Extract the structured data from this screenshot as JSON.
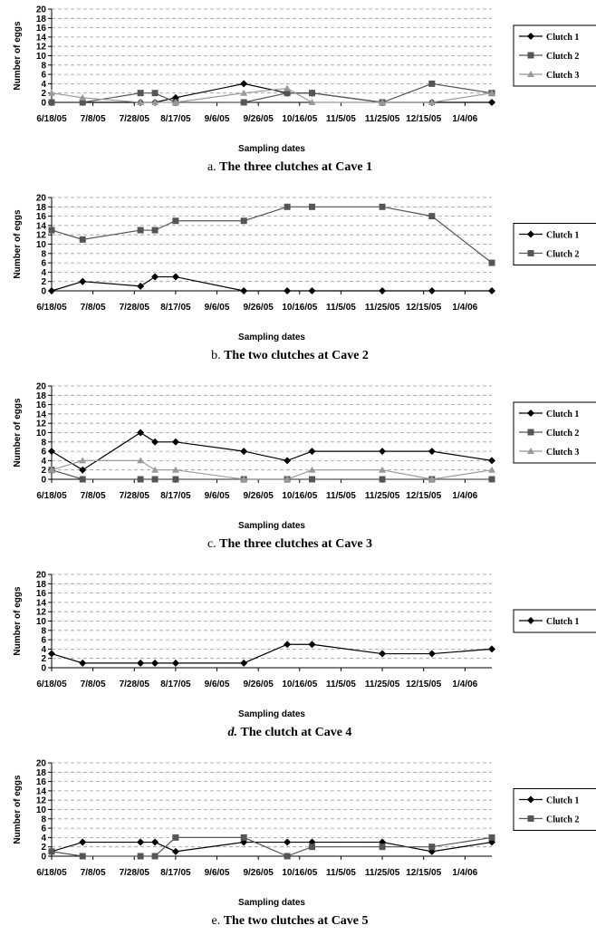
{
  "colors": {
    "Clutch 1": "#000000",
    "Clutch 2": "#555555",
    "Clutch 3": "#999999",
    "grid": "#9a9a9a",
    "axis": "#000000",
    "legend_border": "#000000"
  },
  "chart_data": [
    {
      "type": "line",
      "caption_prefix": "a. ",
      "caption": "The three clutches at Cave 1",
      "caption_italic_prefix": false,
      "xlabel": "Sampling dates",
      "ylabel": "Number of eggs",
      "ylim": [
        0,
        20
      ],
      "yticks": [
        "0",
        "2",
        "4",
        "6",
        "8",
        "10",
        "12",
        "14",
        "16",
        "18",
        "20"
      ],
      "xticks": [
        "6/18/05",
        "7/8/05",
        "7/28/05",
        "8/17/05",
        "9/6/05",
        "9/26/05",
        "10/16/05",
        "11/5/05",
        "11/25/05",
        "12/15/05",
        "1/4/06"
      ],
      "grid": "horizontal dashed",
      "legend_placement": "right",
      "x": [
        "6/18/05",
        "7/3/05",
        "7/31/05",
        "8/7/05",
        "8/17/05",
        "9/19/05",
        "10/10/05",
        "10/22/05",
        "11/25/05",
        "12/19/05",
        "1/17/06"
      ],
      "series": [
        {
          "name": "Clutch 1",
          "marker": "diamond",
          "values": [
            0,
            0,
            0,
            0,
            1,
            4,
            2,
            2,
            0,
            0,
            0
          ]
        },
        {
          "name": "Clutch 2",
          "marker": "square",
          "values": [
            0,
            0,
            2,
            2,
            0,
            0,
            2,
            2,
            0,
            4,
            2
          ]
        },
        {
          "name": "Clutch 3",
          "marker": "triangle",
          "values": [
            2,
            1,
            0,
            0,
            0,
            2,
            3,
            0,
            0,
            0,
            2
          ]
        }
      ]
    },
    {
      "type": "line",
      "caption_prefix": "b. ",
      "caption": "The two clutches at Cave 2",
      "caption_italic_prefix": false,
      "xlabel": "Sampling dates",
      "ylabel": "Number of eggs",
      "ylim": [
        0,
        20
      ],
      "yticks": [
        "0",
        "2",
        "4",
        "6",
        "8",
        "10",
        "12",
        "14",
        "16",
        "18",
        "20"
      ],
      "xticks": [
        "6/18/05",
        "7/8/05",
        "7/28/05",
        "8/17/05",
        "9/6/05",
        "9/26/05",
        "10/16/05",
        "11/5/05",
        "11/25/05",
        "12/15/05",
        "1/4/06"
      ],
      "grid": "horizontal dashed",
      "legend_placement": "right",
      "x": [
        "6/18/05",
        "7/3/05",
        "7/31/05",
        "8/7/05",
        "8/17/05",
        "9/19/05",
        "10/10/05",
        "10/22/05",
        "11/25/05",
        "12/19/05",
        "1/17/06"
      ],
      "series": [
        {
          "name": "Clutch 1",
          "marker": "diamond",
          "values": [
            0,
            2,
            1,
            3,
            3,
            0,
            0,
            0,
            0,
            0,
            0
          ]
        },
        {
          "name": "Clutch 2",
          "marker": "square",
          "values": [
            13,
            11,
            13,
            13,
            15,
            15,
            18,
            18,
            18,
            16,
            6
          ]
        }
      ]
    },
    {
      "type": "line",
      "caption_prefix": "c. ",
      "caption": "The three clutches at Cave 3",
      "caption_italic_prefix": false,
      "xlabel": "Sampling dates",
      "ylabel": "Number of eggs",
      "ylim": [
        0,
        20
      ],
      "yticks": [
        "0",
        "2",
        "4",
        "6",
        "8",
        "10",
        "12",
        "14",
        "16",
        "18",
        "20"
      ],
      "xticks": [
        "6/18/05",
        "7/8/05",
        "7/28/05",
        "8/17/05",
        "9/6/05",
        "9/26/05",
        "10/16/05",
        "11/5/05",
        "11/25/05",
        "12/15/05",
        "1/4/06"
      ],
      "grid": "horizontal dashed",
      "legend_placement": "right",
      "x": [
        "6/18/05",
        "7/3/05",
        "7/31/05",
        "8/7/05",
        "8/17/05",
        "9/19/05",
        "10/10/05",
        "10/22/05",
        "11/25/05",
        "12/19/05",
        "1/17/06"
      ],
      "series": [
        {
          "name": "Clutch 1",
          "marker": "diamond",
          "values": [
            6,
            2,
            10,
            8,
            8,
            6,
            4,
            6,
            6,
            6,
            4
          ]
        },
        {
          "name": "Clutch 2",
          "marker": "square",
          "values": [
            2,
            0,
            0,
            0,
            0,
            0,
            0,
            0,
            0,
            0,
            0
          ]
        },
        {
          "name": "Clutch 3",
          "marker": "triangle",
          "values": [
            2,
            4,
            4,
            2,
            2,
            0,
            0,
            2,
            2,
            0,
            2
          ]
        }
      ]
    },
    {
      "type": "line",
      "caption_prefix": "d. ",
      "caption": "The clutch at Cave 4",
      "caption_italic_prefix": true,
      "xlabel": "Sampling dates",
      "ylabel": "Number of eggs",
      "ylim": [
        0,
        20
      ],
      "yticks": [
        "0",
        "2",
        "4",
        "6",
        "8",
        "10",
        "12",
        "14",
        "16",
        "18",
        "20"
      ],
      "xticks": [
        "6/18/05",
        "7/8/05",
        "7/28/05",
        "8/17/05",
        "9/6/05",
        "9/26/05",
        "10/16/05",
        "11/5/05",
        "11/25/05",
        "12/15/05",
        "1/4/06"
      ],
      "grid": "horizontal dashed",
      "legend_placement": "right",
      "x": [
        "6/18/05",
        "7/3/05",
        "7/31/05",
        "8/7/05",
        "8/17/05",
        "9/19/05",
        "10/10/05",
        "10/22/05",
        "11/25/05",
        "12/19/05",
        "1/17/06"
      ],
      "series": [
        {
          "name": "Clutch 1",
          "marker": "diamond",
          "values": [
            3,
            1,
            1,
            1,
            1,
            1,
            5,
            5,
            3,
            3,
            4
          ]
        }
      ]
    },
    {
      "type": "line",
      "caption_prefix": "e. ",
      "caption": "The two clutches at Cave 5",
      "caption_italic_prefix": false,
      "xlabel": "Sampling dates",
      "ylabel": "Number of eggs",
      "ylim": [
        0,
        20
      ],
      "yticks": [
        "0",
        "2",
        "4",
        "6",
        "8",
        "10",
        "12",
        "14",
        "16",
        "18",
        "20"
      ],
      "xticks": [
        "6/18/05",
        "7/8/05",
        "7/28/05",
        "8/17/05",
        "9/6/05",
        "9/26/05",
        "10/16/05",
        "11/5/05",
        "11/25/05",
        "12/15/05",
        "1/4/06"
      ],
      "grid": "horizontal dashed",
      "legend_placement": "right",
      "x": [
        "6/18/05",
        "7/3/05",
        "7/31/05",
        "8/7/05",
        "8/17/05",
        "9/19/05",
        "10/10/05",
        "10/22/05",
        "11/25/05",
        "12/19/05",
        "1/17/06"
      ],
      "series": [
        {
          "name": "Clutch 1",
          "marker": "diamond",
          "values": [
            1,
            3,
            3,
            3,
            1,
            3,
            3,
            3,
            3,
            1,
            3
          ]
        },
        {
          "name": "Clutch 2",
          "marker": "square",
          "values": [
            1,
            0,
            0,
            0,
            4,
            4,
            0,
            2,
            2,
            2,
            4
          ]
        }
      ]
    }
  ]
}
